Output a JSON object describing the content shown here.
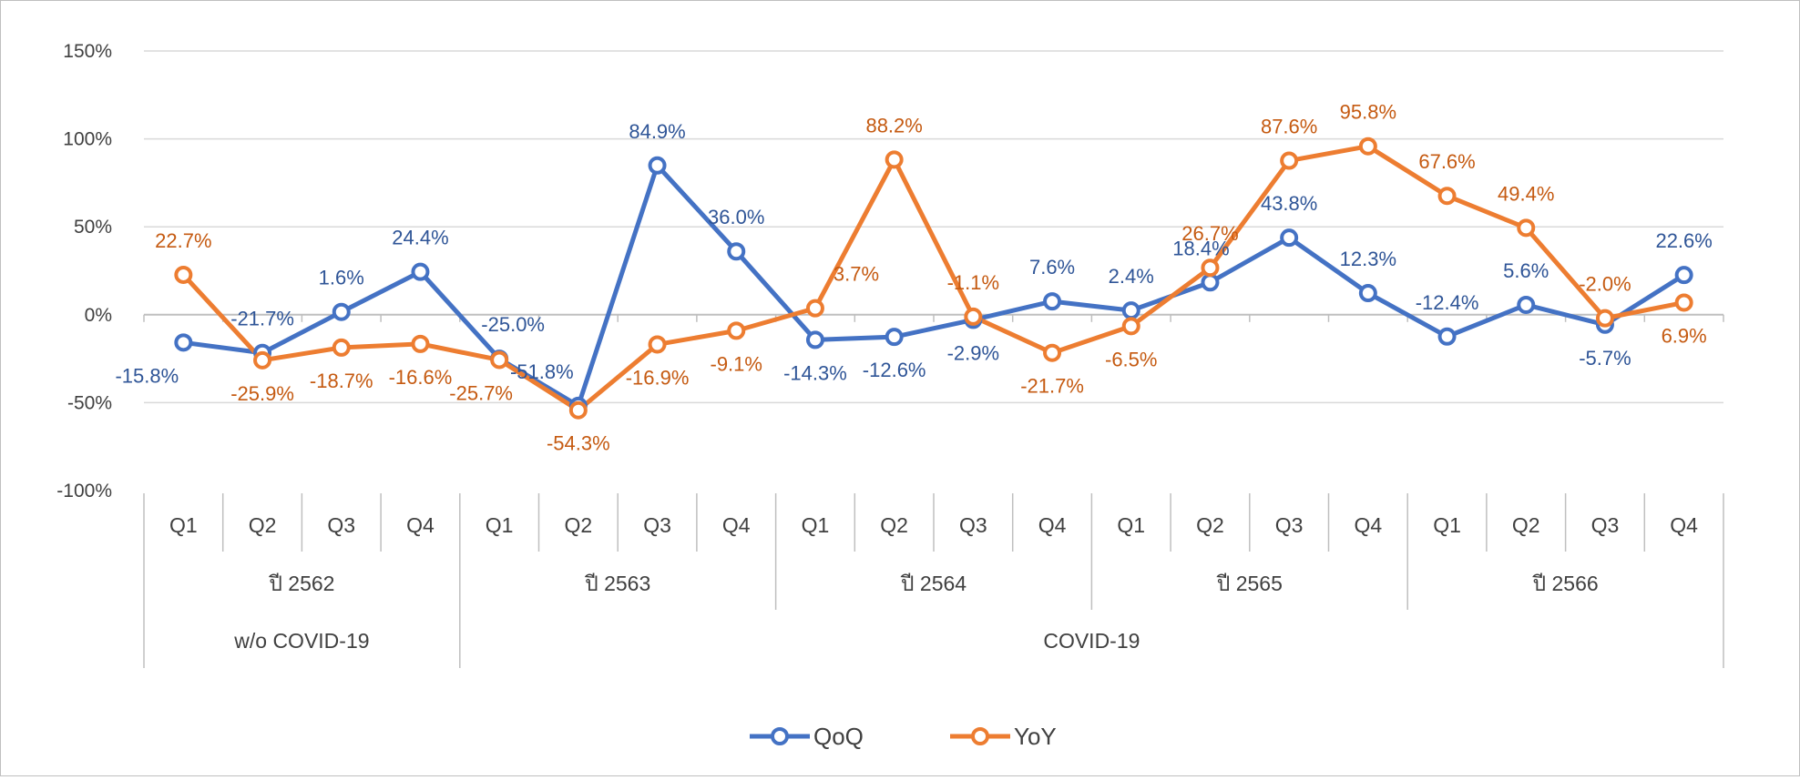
{
  "chart_data": {
    "type": "line",
    "title": "",
    "xlabel": "",
    "ylabel": "",
    "ylim": [
      -100,
      150
    ],
    "y_ticks": [
      "150%",
      "100%",
      "50%",
      "0%",
      "-50%",
      "-100%"
    ],
    "y_tick_values": [
      150,
      100,
      50,
      0,
      -50,
      -100
    ],
    "grid": "horizontal",
    "legend_position": "bottom",
    "categories": [
      "Q1",
      "Q2",
      "Q3",
      "Q4",
      "Q1",
      "Q2",
      "Q3",
      "Q4",
      "Q1",
      "Q2",
      "Q3",
      "Q4",
      "Q1",
      "Q2",
      "Q3",
      "Q4",
      "Q1",
      "Q2",
      "Q3",
      "Q4"
    ],
    "year_groups": [
      {
        "label": "ปี 2562",
        "span": 4
      },
      {
        "label": "ปี 2563",
        "span": 4
      },
      {
        "label": "ปี 2564",
        "span": 4
      },
      {
        "label": "ปี 2565",
        "span": 4
      },
      {
        "label": "ปี 2566",
        "span": 4
      }
    ],
    "period_groups": [
      {
        "label": "w/o COVID-19",
        "span": 4
      },
      {
        "label": "COVID-19",
        "span": 16
      }
    ],
    "series": [
      {
        "name": "QoQ",
        "color": "#4472c4",
        "label_color": "#2f5597",
        "values": [
          -15.8,
          -21.7,
          1.6,
          24.4,
          -25.0,
          -51.8,
          84.9,
          36.0,
          -14.3,
          -12.6,
          -2.9,
          7.6,
          2.4,
          18.4,
          43.8,
          12.3,
          -12.4,
          5.6,
          -5.7,
          22.6
        ],
        "labels": [
          "-15.8%",
          "-21.7%",
          "1.6%",
          "24.4%",
          "-25.0%",
          "-51.8%",
          "84.9%",
          "36.0%",
          "-14.3%",
          "-12.6%",
          "-2.9%",
          "7.6%",
          "2.4%",
          "18.4%",
          "43.8%",
          "12.3%",
          "-12.4%",
          "5.6%",
          "-5.7%",
          "22.6%"
        ]
      },
      {
        "name": "YoY",
        "color": "#ed7d31",
        "label_color": "#c55a11",
        "values": [
          22.7,
          -25.9,
          -18.7,
          -16.6,
          -25.7,
          -54.3,
          -16.9,
          -9.1,
          3.7,
          88.2,
          -1.1,
          -21.7,
          -6.5,
          26.7,
          87.6,
          95.8,
          67.6,
          49.4,
          -2.0,
          6.9
        ],
        "labels": [
          "22.7%",
          "-25.9%",
          "-18.7%",
          "-16.6%",
          "-25.7%",
          "-54.3%",
          "-16.9%",
          "-9.1%",
          "3.7%",
          "88.2%",
          "-1.1%",
          "-21.7%",
          "-6.5%",
          "26.7%",
          "87.6%",
          "95.8%",
          "67.6%",
          "49.4%",
          "-2.0%",
          "6.9%"
        ]
      }
    ]
  }
}
